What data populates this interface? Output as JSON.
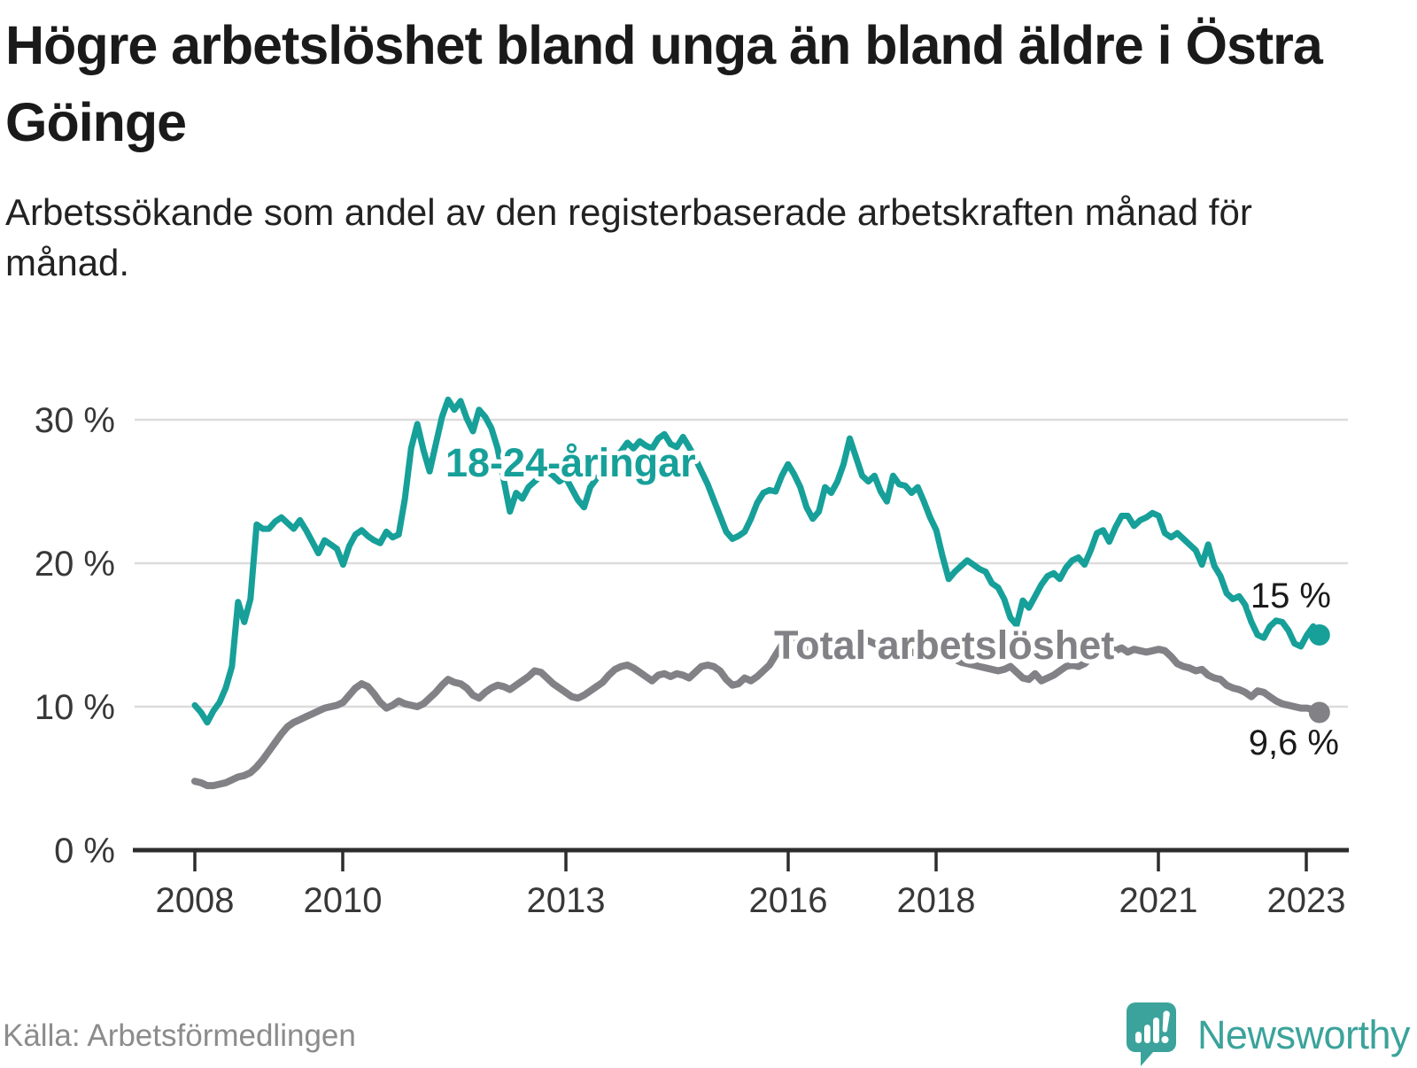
{
  "header": {
    "title": "Högre arbetslöshet bland unga än bland äldre i Östra Göinge",
    "subtitle": "Arbetssökande som andel av den registerbaserade arbetskraften månad för månad."
  },
  "chart_data": {
    "type": "line",
    "title": "Högre arbetslöshet bland unga än bland äldre i Östra Göinge",
    "xlabel": "",
    "ylabel": "Arbetssökande som andel av den registerbaserade arbetskraften",
    "x_unit": "month",
    "x_start": "2008-01",
    "x_end": "2023-03",
    "ylim": [
      0,
      32.5
    ],
    "grid": "horizontal",
    "legend_position": "inline-labels",
    "y_ticks": [
      {
        "value": 30,
        "label": "30 %"
      },
      {
        "value": 20,
        "label": "20 %"
      },
      {
        "value": 10,
        "label": "10 %"
      },
      {
        "value": 0,
        "label": "0 %"
      }
    ],
    "x_ticks": [
      {
        "year": 2008,
        "label": "2008"
      },
      {
        "year": 2010,
        "label": "2010"
      },
      {
        "year": 2013,
        "label": "2013"
      },
      {
        "year": 2016,
        "label": "2016"
      },
      {
        "year": 2018,
        "label": "2018"
      },
      {
        "year": 2021,
        "label": "2021"
      },
      {
        "year": 2023,
        "label": "2023"
      }
    ],
    "series": [
      {
        "name": "Total arbetslöshet",
        "color": "#818186",
        "end_label": "9,6 %",
        "end_value": 9.6,
        "values": [
          4.8,
          4.7,
          4.5,
          4.5,
          4.6,
          4.7,
          4.9,
          5.1,
          5.2,
          5.4,
          5.8,
          6.3,
          6.9,
          7.5,
          8.1,
          8.6,
          8.9,
          9.1,
          9.3,
          9.5,
          9.7,
          9.9,
          10.0,
          10.1,
          10.3,
          10.8,
          11.3,
          11.6,
          11.4,
          10.9,
          10.3,
          9.9,
          10.1,
          10.4,
          10.2,
          10.1,
          10.0,
          10.2,
          10.6,
          11.0,
          11.5,
          11.9,
          11.7,
          11.6,
          11.3,
          10.8,
          10.6,
          11.0,
          11.3,
          11.5,
          11.4,
          11.2,
          11.5,
          11.8,
          12.1,
          12.5,
          12.4,
          12.0,
          11.6,
          11.3,
          11.0,
          10.7,
          10.6,
          10.8,
          11.1,
          11.4,
          11.7,
          12.2,
          12.6,
          12.8,
          12.9,
          12.7,
          12.4,
          12.1,
          11.8,
          12.2,
          12.3,
          12.1,
          12.3,
          12.2,
          12.0,
          12.4,
          12.8,
          12.9,
          12.8,
          12.5,
          11.9,
          11.5,
          11.6,
          12.0,
          11.8,
          12.1,
          12.5,
          12.9,
          13.6,
          14.3,
          14.7,
          14.5,
          14.2,
          14.0,
          14.2,
          14.4,
          14.3,
          14.1,
          14.0,
          14.2,
          14.4,
          14.3,
          14.4,
          14.6,
          14.4,
          14.2,
          14.0,
          13.9,
          14.1,
          14.0,
          13.8,
          13.7,
          13.8,
          13.9,
          13.8,
          13.6,
          13.4,
          13.3,
          13.1,
          13.0,
          12.9,
          12.8,
          12.7,
          12.6,
          12.5,
          12.6,
          12.8,
          12.4,
          12.0,
          11.9,
          12.3,
          11.8,
          12.0,
          12.2,
          12.5,
          12.8,
          12.9,
          12.8,
          13.0,
          13.4,
          13.9,
          14.3,
          14.1,
          13.9,
          14.1,
          13.8,
          14.0,
          13.9,
          13.8,
          13.9,
          14.0,
          13.9,
          13.5,
          13.0,
          12.8,
          12.7,
          12.5,
          12.6,
          12.2,
          12.0,
          11.9,
          11.5,
          11.3,
          11.2,
          11.0,
          10.7,
          11.1,
          11.0,
          10.7,
          10.4,
          10.2,
          10.1,
          10.0,
          9.9,
          9.9,
          9.8,
          9.6
        ]
      },
      {
        "name": "18-24-åringar",
        "color": "#16a099",
        "end_label": "15 %",
        "end_value": 15,
        "values": [
          10.1,
          9.6,
          8.9,
          9.7,
          10.3,
          11.3,
          12.8,
          17.3,
          15.9,
          17.5,
          22.7,
          22.4,
          22.4,
          22.9,
          23.2,
          22.8,
          22.4,
          23.0,
          22.3,
          21.5,
          20.7,
          21.6,
          21.3,
          21.0,
          19.9,
          21.2,
          22.0,
          22.3,
          21.9,
          21.6,
          21.4,
          22.2,
          21.8,
          22.0,
          24.5,
          28.0,
          29.7,
          27.9,
          26.4,
          28.3,
          30.2,
          31.4,
          30.7,
          31.3,
          30.1,
          29.2,
          30.7,
          30.2,
          29.4,
          28.0,
          25.8,
          23.6,
          24.9,
          24.5,
          25.3,
          25.7,
          26.1,
          26.4,
          26.1,
          25.7,
          26.0,
          25.2,
          24.4,
          23.9,
          25.3,
          25.9,
          26.3,
          26.9,
          27.4,
          27.8,
          28.4,
          28.0,
          28.5,
          28.2,
          28.0,
          28.7,
          29.0,
          28.3,
          28.1,
          28.8,
          28.1,
          27.3,
          26.4,
          25.5,
          24.4,
          23.3,
          22.2,
          21.7,
          21.9,
          22.2,
          23.1,
          24.2,
          24.9,
          25.1,
          25.0,
          26.1,
          26.9,
          26.2,
          25.3,
          23.9,
          23.1,
          23.6,
          25.3,
          24.9,
          25.7,
          26.9,
          28.7,
          27.4,
          26.1,
          25.7,
          26.1,
          25.0,
          24.3,
          26.1,
          25.5,
          25.4,
          24.9,
          25.3,
          24.3,
          23.2,
          22.3,
          20.5,
          18.9,
          19.4,
          19.8,
          20.2,
          19.9,
          19.6,
          19.4,
          18.6,
          18.3,
          17.5,
          16.2,
          15.7,
          17.4,
          16.9,
          17.7,
          18.5,
          19.1,
          19.3,
          18.9,
          19.7,
          20.2,
          20.4,
          19.9,
          20.9,
          22.1,
          22.3,
          21.5,
          22.5,
          23.3,
          23.3,
          22.6,
          23.0,
          23.2,
          23.5,
          23.3,
          22.1,
          21.8,
          22.1,
          21.7,
          21.3,
          20.9,
          19.9,
          21.3,
          19.8,
          19.1,
          17.9,
          17.5,
          17.7,
          17.1,
          15.9,
          15.0,
          14.8,
          15.6,
          16.0,
          15.9,
          15.3,
          14.4,
          14.2,
          15.0,
          15.6,
          15.0
        ]
      }
    ]
  },
  "footer": {
    "source": "Källa: Arbetsförmedlingen",
    "brand": "Newsworthy"
  }
}
